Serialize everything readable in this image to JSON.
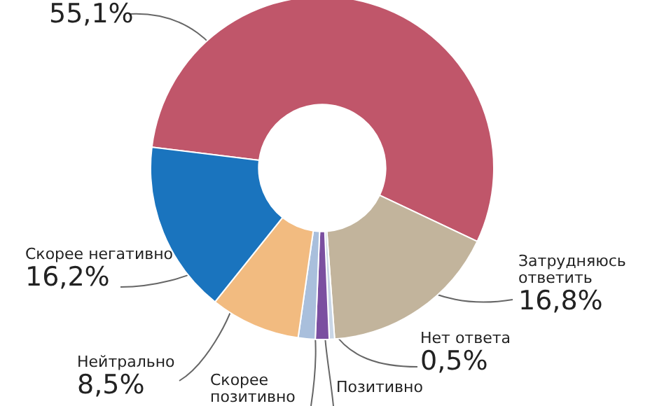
{
  "chart_data": {
    "type": "donut",
    "categories": [
      null,
      "Затрудняюсь ответить",
      "Нет ответа",
      "Позитивно",
      "Скорее позитивно",
      "Нейтрально",
      "Скорее негативно"
    ],
    "values": [
      55.1,
      16.8,
      0.5,
      1.3,
      1.6,
      8.5,
      16.2
    ],
    "colors": [
      "#c0566a",
      "#c2b49c",
      "#c9d6e6",
      "#7b4fa0",
      "#a9bfdc",
      "#f2bb80",
      "#1a74be"
    ],
    "value_labels": [
      "55,1%",
      "16,8%",
      "0,5%",
      null,
      null,
      "8,5%",
      "16,2%"
    ]
  }
}
